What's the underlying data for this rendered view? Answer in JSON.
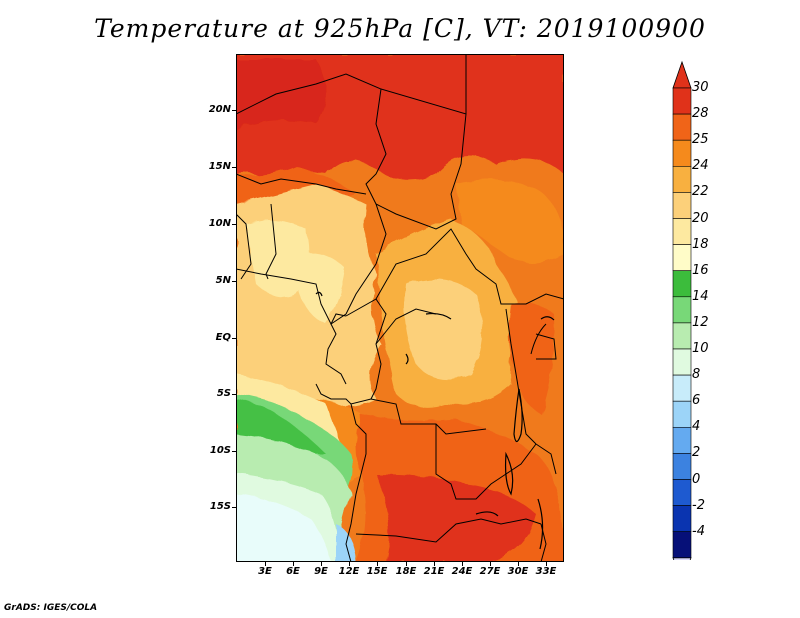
{
  "title": "Temperature at 925hPa [C], VT: 2019100900",
  "credit": "GrADS: IGES/COLA",
  "map": {
    "region": "Central Africa",
    "lat_labels": [
      "20N",
      "15N",
      "10N",
      "5N",
      "EQ",
      "5S",
      "10S",
      "15S"
    ],
    "lon_labels": [
      "3E",
      "6E",
      "9E",
      "12E",
      "15E",
      "18E",
      "21E",
      "24E",
      "27E",
      "30E",
      "33E"
    ]
  },
  "colorbar": {
    "labels": [
      "30",
      "28",
      "25",
      "24",
      "22",
      "20",
      "18",
      "16",
      "14",
      "12",
      "10",
      "8",
      "6",
      "4",
      "2",
      "0",
      "-2",
      "-4"
    ],
    "colors": {
      "above": "#e0321a",
      "bins": [
        "#e0321a",
        "#f06418",
        "#f58a1c",
        "#f8b040",
        "#fcd07a",
        "#fde9a0",
        "#fffcc8",
        "#3cbc3c",
        "#78d878",
        "#b8ecb0",
        "#e0fae0",
        "#c8ecfa",
        "#9cd4f8",
        "#64aaf0",
        "#3c82e0",
        "#1e5ad0",
        "#0a34b0",
        "#061078"
      ],
      "below": "#d8d8f8"
    }
  }
}
